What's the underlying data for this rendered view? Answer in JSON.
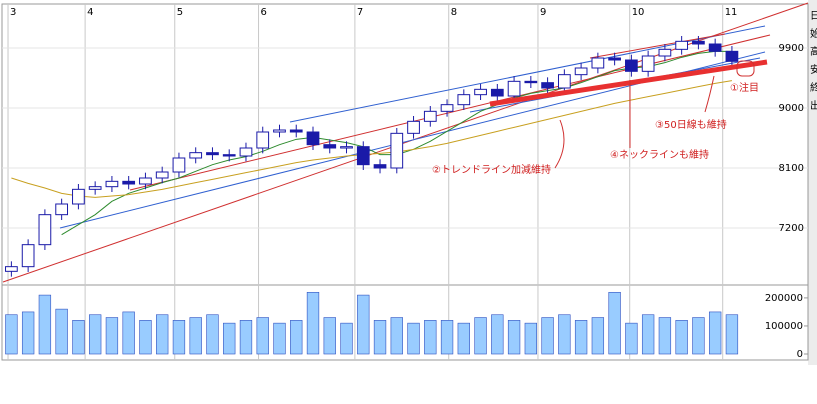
{
  "chart_data": {
    "type": "candlestick",
    "xlim": [
      0,
      185
    ],
    "xticks": [
      {
        "value": 1.2,
        "label": "3"
      },
      {
        "value": 19.6,
        "label": "4"
      },
      {
        "value": 41,
        "label": "5"
      },
      {
        "value": 61,
        "label": "6"
      },
      {
        "value": 84,
        "label": "7"
      },
      {
        "value": 106.4,
        "label": "8"
      },
      {
        "value": 127.7,
        "label": "9"
      },
      {
        "value": 149.6,
        "label": "10"
      },
      {
        "value": 171.8,
        "label": "11"
      }
    ],
    "ylim": [
      6375,
      10545
    ],
    "yticks": [
      7200,
      8100,
      9000,
      9900
    ],
    "grid": true,
    "up_color": "#ffffff",
    "down_color": "#1a1aa8",
    "x": [
      2,
      6,
      10,
      14,
      18,
      22,
      26,
      30,
      34,
      38,
      42,
      46,
      50,
      54,
      58,
      62,
      66,
      70,
      74,
      78,
      82,
      86,
      90,
      94,
      98,
      102,
      106,
      110,
      114,
      118,
      122,
      126,
      130,
      134,
      138,
      142,
      146,
      150,
      154,
      158,
      162,
      166,
      170,
      174
    ],
    "open": [
      6550,
      6620,
      6950,
      7400,
      7560,
      7780,
      7820,
      7900,
      7860,
      7950,
      8040,
      8250,
      8330,
      8300,
      8280,
      8400,
      8640,
      8670,
      8640,
      8450,
      8400,
      8420,
      8150,
      8100,
      8620,
      8800,
      8950,
      9050,
      9200,
      9280,
      9180,
      9400,
      9380,
      9300,
      9500,
      9600,
      9750,
      9720,
      9550,
      9780,
      9880,
      10000,
      9960,
      9850
    ],
    "high": [
      6700,
      7030,
      7480,
      7640,
      7860,
      7900,
      7980,
      7980,
      8030,
      8120,
      8330,
      8410,
      8410,
      8380,
      8480,
      8720,
      8750,
      8750,
      8720,
      8530,
      8500,
      8500,
      8230,
      8700,
      8880,
      9030,
      9130,
      9280,
      9360,
      9360,
      9480,
      9480,
      9460,
      9580,
      9680,
      9830,
      9830,
      9800,
      9860,
      9960,
      10080,
      10080,
      10040,
      9930
    ],
    "low": [
      6470,
      6540,
      6870,
      7320,
      7480,
      7700,
      7740,
      7780,
      7780,
      7870,
      7960,
      8170,
      8220,
      8200,
      8200,
      8320,
      8560,
      8560,
      8370,
      8320,
      8320,
      8070,
      8020,
      8020,
      8540,
      8720,
      8870,
      8970,
      9120,
      9100,
      9100,
      9300,
      9220,
      9220,
      9420,
      9520,
      9640,
      9470,
      9470,
      9700,
      9800,
      9880,
      9770,
      9620
    ],
    "close": [
      6620,
      6950,
      7400,
      7560,
      7780,
      7820,
      7900,
      7860,
      7950,
      8040,
      8250,
      8330,
      8300,
      8280,
      8400,
      8640,
      8670,
      8640,
      8450,
      8400,
      8420,
      8150,
      8100,
      8620,
      8800,
      8950,
      9050,
      9200,
      9280,
      9180,
      9400,
      9380,
      9300,
      9500,
      9600,
      9750,
      9720,
      9550,
      9780,
      9880,
      10000,
      9960,
      9850,
      9700
    ],
    "series": [
      {
        "color": "#2e8b2e",
        "values": [
          null,
          null,
          null,
          7100,
          7250,
          7400,
          7600,
          7720,
          7800,
          7880,
          7950,
          8050,
          8150,
          8220,
          8270,
          8350,
          8450,
          8530,
          8560,
          8520,
          8480,
          8420,
          8300,
          8300,
          8380,
          8500,
          8650,
          8800,
          8950,
          9050,
          9150,
          9220,
          9260,
          9300,
          9380,
          9470,
          9560,
          9600,
          9620,
          9680,
          9760,
          9820,
          9850,
          9850
        ]
      },
      {
        "color": "#c8a020",
        "values": [
          7950,
          7870,
          7800,
          7720,
          7680,
          7660,
          7680,
          7700,
          7740,
          7780,
          7830,
          7880,
          7930,
          7980,
          8030,
          8080,
          8130,
          8180,
          8220,
          8250,
          8280,
          8300,
          8320,
          8340,
          8380,
          8420,
          8470,
          8530,
          8590,
          8650,
          8710,
          8770,
          8830,
          8890,
          8950,
          9010,
          9070,
          9120,
          9170,
          9220,
          9270,
          9320,
          9370,
          9410
        ]
      }
    ],
    "volume": {
      "color": "#99ccff",
      "ylim": [
        0,
        246000
      ],
      "yticks": [
        0,
        100000,
        200000
      ],
      "values": [
        140000,
        150000,
        210000,
        160000,
        120000,
        140000,
        130000,
        150000,
        120000,
        140000,
        120000,
        130000,
        140000,
        110000,
        120000,
        130000,
        110000,
        120000,
        220000,
        130000,
        110000,
        210000,
        120000,
        130000,
        110000,
        120000,
        120000,
        110000,
        130000,
        140000,
        120000,
        110000,
        130000,
        140000,
        120000,
        130000,
        220000,
        110000,
        140000,
        130000,
        120000,
        130000,
        150000,
        140000
      ]
    },
    "annotations": [
      "①注目",
      "②トレンドライン加減維持",
      "③50日線も維持",
      "④ネックラインも維持"
    ]
  },
  "side_panel": [
    "日",
    "始",
    "高",
    "安",
    "終",
    "出"
  ]
}
